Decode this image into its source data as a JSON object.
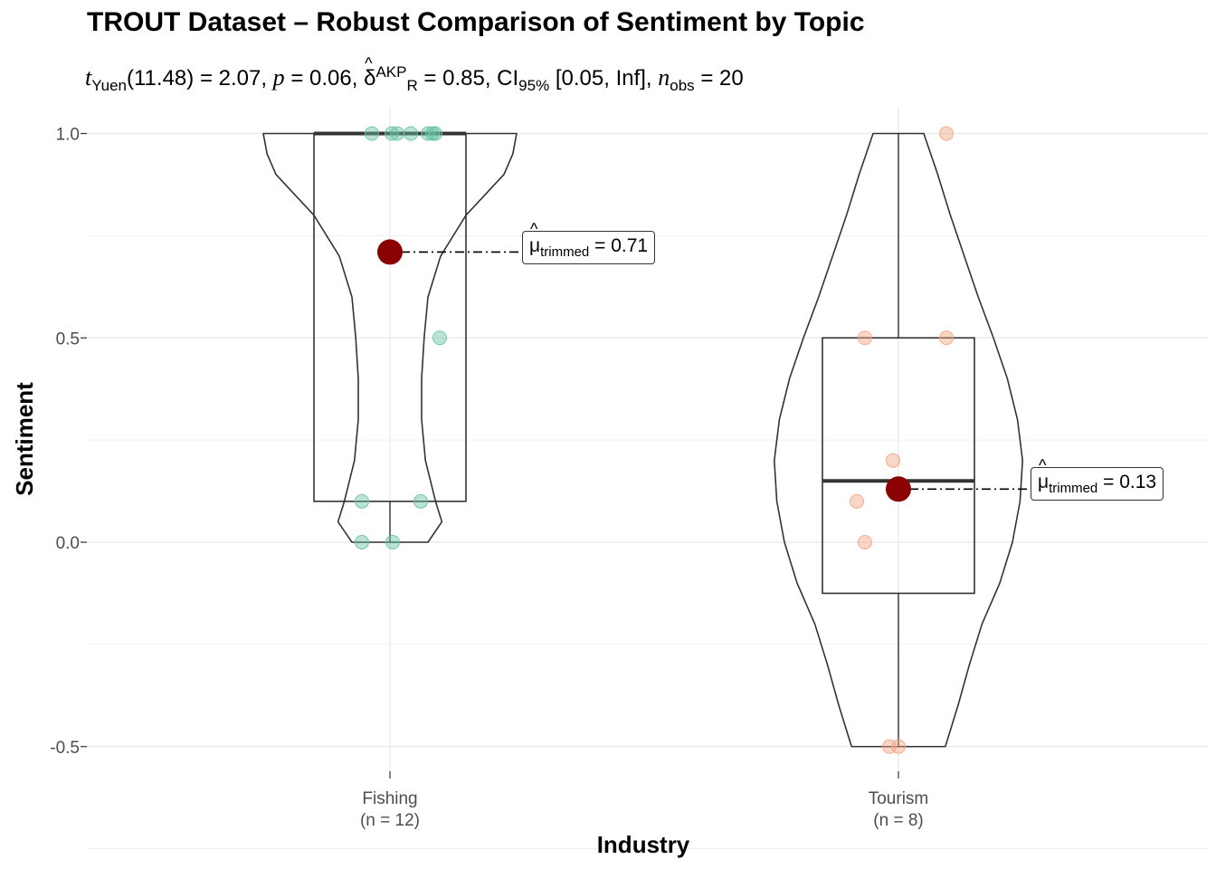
{
  "title": "TROUT Dataset – Robust Comparison of Sentiment by Topic",
  "subtitle": {
    "t_symbol": "t",
    "t_sub": "Yuen",
    "df": "(11.48)",
    "t_value": "= 2.07,",
    "p_symbol": "p",
    "p_value": "= 0.06,",
    "delta_symbol": "δ",
    "delta_sup": "AKP",
    "delta_sub": "R",
    "delta_value": "= 0.85,",
    "ci_symbol": "CI",
    "ci_sub": "95%",
    "ci_value": "[0.05, Inf],",
    "n_symbol": "n",
    "n_sub": "obs",
    "n_value": "= 20"
  },
  "colors": {
    "fishing_points": "#66C2A5",
    "tourism_points": "#F4A582",
    "mean_point": "#8B0000",
    "grid": "#EBEBEB",
    "outline": "#333333"
  },
  "mean_labels": {
    "fishing": {
      "symbol": "μ",
      "sub": "trimmed",
      "value": "= 0.71"
    },
    "tourism": {
      "symbol": "μ",
      "sub": "trimmed",
      "value": "= 0.13"
    }
  },
  "chart_data": {
    "type": "violin-box-scatter",
    "xlabel": "Industry",
    "ylabel": "Sentiment",
    "ylim": [
      -0.55,
      1.05
    ],
    "yticks": [
      -0.5,
      0.0,
      0.5,
      1.0
    ],
    "ytick_labels": [
      "-0.5",
      "0.0",
      "0.5",
      "1.0"
    ],
    "grid": true,
    "categories": [
      "Fishing",
      "Tourism"
    ],
    "category_labels": [
      [
        "Fishing",
        "(n = 12)"
      ],
      [
        "Tourism",
        "(n = 8)"
      ]
    ],
    "groups": [
      {
        "name": "Fishing",
        "n": 12,
        "points": [
          1.0,
          1.0,
          1.0,
          1.0,
          1.0,
          1.0,
          1.0,
          0.5,
          0.1,
          0.1,
          0.0,
          0.0
        ],
        "box": {
          "q1": 0.1,
          "median": 1.0,
          "q3": 1.0,
          "whisker_low": 0.0,
          "whisker_high": 1.0
        },
        "trimmed_mean": 0.71,
        "violin": [
          [
            0.0,
            0.3
          ],
          [
            0.05,
            0.41
          ],
          [
            0.1,
            0.36
          ],
          [
            0.2,
            0.28
          ],
          [
            0.3,
            0.25
          ],
          [
            0.4,
            0.25
          ],
          [
            0.5,
            0.27
          ],
          [
            0.6,
            0.3
          ],
          [
            0.7,
            0.4
          ],
          [
            0.8,
            0.6
          ],
          [
            0.9,
            0.9
          ],
          [
            0.95,
            0.97
          ],
          [
            1.0,
            1.0
          ]
        ]
      },
      {
        "name": "Tourism",
        "n": 8,
        "points": [
          1.0,
          0.5,
          0.5,
          0.2,
          0.1,
          0.0,
          -0.5,
          -0.5
        ],
        "box": {
          "q1": -0.125,
          "median": 0.15,
          "q3": 0.5,
          "whisker_low": -0.5,
          "whisker_high": 1.0
        },
        "trimmed_mean": 0.13,
        "violin": [
          [
            -0.5,
            0.37
          ],
          [
            -0.4,
            0.47
          ],
          [
            -0.3,
            0.56
          ],
          [
            -0.2,
            0.66
          ],
          [
            -0.1,
            0.8
          ],
          [
            0.0,
            0.9
          ],
          [
            0.1,
            0.96
          ],
          [
            0.2,
            0.98
          ],
          [
            0.3,
            0.94
          ],
          [
            0.4,
            0.86
          ],
          [
            0.5,
            0.75
          ],
          [
            0.6,
            0.63
          ],
          [
            0.7,
            0.52
          ],
          [
            0.8,
            0.41
          ],
          [
            0.9,
            0.31
          ],
          [
            1.0,
            0.2
          ]
        ]
      }
    ]
  }
}
